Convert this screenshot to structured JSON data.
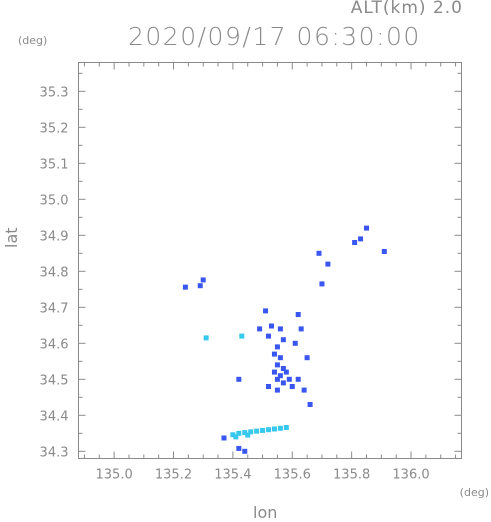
{
  "chart_data": {
    "type": "scatter",
    "title": "2020/09/17 06:30:00",
    "subtitle": "ALT(km) 2.0",
    "xlabel": "lon",
    "ylabel": "lat",
    "xunit": "(deg)",
    "yunit": "(deg)",
    "xlim": [
      134.88,
      136.17
    ],
    "ylim": [
      34.28,
      35.38
    ],
    "xticks": [
      "135.0",
      "135.2",
      "135.4",
      "135.6",
      "135.8",
      "136.0"
    ],
    "yticks": [
      "34.3",
      "34.4",
      "34.5",
      "34.6",
      "34.7",
      "34.8",
      "34.9",
      "35.0",
      "35.1",
      "35.2",
      "35.3"
    ],
    "series": [
      {
        "color": "#3a56f0",
        "points": [
          [
            135.24,
            34.756
          ],
          [
            135.3,
            34.776
          ],
          [
            135.29,
            34.76
          ],
          [
            135.53,
            34.648
          ],
          [
            135.56,
            34.64
          ],
          [
            135.52,
            34.62
          ],
          [
            135.57,
            34.61
          ],
          [
            135.55,
            34.59
          ],
          [
            135.54,
            34.57
          ],
          [
            135.56,
            34.56
          ],
          [
            135.55,
            34.54
          ],
          [
            135.57,
            34.53
          ],
          [
            135.54,
            34.52
          ],
          [
            135.56,
            34.51
          ],
          [
            135.58,
            34.52
          ],
          [
            135.55,
            34.5
          ],
          [
            135.57,
            34.49
          ],
          [
            135.59,
            34.5
          ],
          [
            135.6,
            34.48
          ],
          [
            135.62,
            34.5
          ],
          [
            135.64,
            34.47
          ],
          [
            135.55,
            34.47
          ],
          [
            135.52,
            34.48
          ],
          [
            135.61,
            34.6
          ],
          [
            135.63,
            34.64
          ],
          [
            135.62,
            34.68
          ],
          [
            135.65,
            34.56
          ],
          [
            135.66,
            34.43
          ],
          [
            135.42,
            34.5
          ],
          [
            135.37,
            34.337
          ],
          [
            135.42,
            34.308
          ],
          [
            135.44,
            34.3
          ],
          [
            135.51,
            34.69
          ],
          [
            135.49,
            34.64
          ],
          [
            135.81,
            34.88
          ],
          [
            135.83,
            34.89
          ],
          [
            135.85,
            34.92
          ],
          [
            135.91,
            34.855
          ],
          [
            135.7,
            34.765
          ],
          [
            135.72,
            34.82
          ],
          [
            135.69,
            34.85
          ]
        ]
      },
      {
        "color": "#37c8ee",
        "points": [
          [
            135.4,
            34.346
          ],
          [
            135.42,
            34.35
          ],
          [
            135.44,
            34.352
          ],
          [
            135.46,
            34.354
          ],
          [
            135.48,
            34.356
          ],
          [
            135.5,
            34.358
          ],
          [
            135.52,
            34.36
          ],
          [
            135.54,
            34.362
          ],
          [
            135.56,
            34.364
          ],
          [
            135.58,
            34.366
          ],
          [
            135.45,
            34.345
          ],
          [
            135.41,
            34.34
          ],
          [
            135.43,
            34.62
          ],
          [
            135.31,
            34.615
          ]
        ]
      }
    ]
  }
}
